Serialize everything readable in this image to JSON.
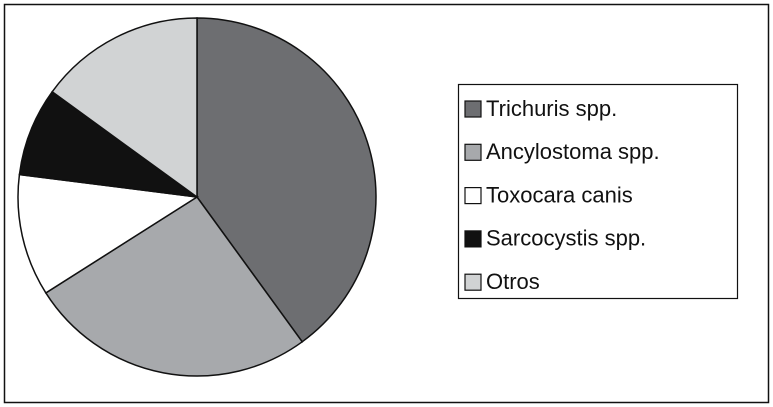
{
  "chart_data": {
    "type": "pie",
    "categories": [
      "Trichuris spp.",
      "Ancylostoma spp.",
      "Toxocara canis",
      "Sarcocystis spp.",
      "Otros"
    ],
    "values": [
      40,
      26,
      11,
      8,
      15
    ],
    "colors": [
      "#6d6e71",
      "#a7a9ac",
      "#ffffff",
      "#111111",
      "#d1d3d4"
    ],
    "legend": "right"
  }
}
